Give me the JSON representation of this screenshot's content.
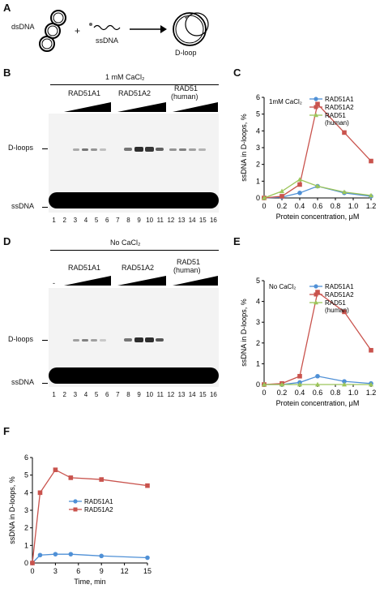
{
  "panelA": {
    "letter": "A",
    "dsdna_label": "dsDNA",
    "plus": "+",
    "ssdna_label": "ssDNA",
    "product_label": "D-loop"
  },
  "panelB": {
    "letter": "B",
    "condition": "1 mM CaCl₂",
    "minus": "-",
    "groups": [
      "RAD51A1",
      "RAD51A2",
      "RAD51"
    ],
    "human_note": "(human)",
    "dloops_label": "D-loops",
    "ssdna_label": "ssDNA",
    "lanes": [
      "1",
      "2",
      "3",
      "4",
      "5",
      "6",
      "7",
      "8",
      "9",
      "10",
      "11",
      "12",
      "13",
      "14",
      "15",
      "16"
    ]
  },
  "panelD": {
    "letter": "D",
    "condition": "No CaCl₂",
    "minus": "-",
    "groups": [
      "RAD51A1",
      "RAD51A2",
      "RAD51"
    ],
    "human_note": "(human)",
    "dloops_label": "D-loops",
    "ssdna_label": "ssDNA",
    "lanes": [
      "1",
      "2",
      "3",
      "4",
      "5",
      "6",
      "7",
      "8",
      "9",
      "10",
      "11",
      "12",
      "13",
      "14",
      "15",
      "16"
    ]
  },
  "colors": {
    "rad51a1": "#4f90d6",
    "rad51a2": "#c9534d",
    "rad51_human": "#9cc55a"
  },
  "chart_data": [
    {
      "panel": "C",
      "type": "line",
      "inset": "1mM CaCl₂",
      "xlabel": "Protein concentration, μM",
      "ylabel": "ssDNA in D-loops, %",
      "xlim": [
        0,
        1.2
      ],
      "ylim": [
        0,
        6
      ],
      "xticks": [
        "0",
        "0.2",
        "0.4",
        "0.6",
        "0.8",
        "1.0",
        "1.2"
      ],
      "yticks": [
        "0",
        "1",
        "2",
        "3",
        "4",
        "5",
        "6"
      ],
      "legend": [
        "RAD51A1",
        "RAD51A2",
        "RAD51 (human)"
      ],
      "series": [
        {
          "name": "RAD51A1",
          "x": [
            0,
            0.2,
            0.4,
            0.6,
            0.9,
            1.2
          ],
          "y": [
            0,
            0.05,
            0.3,
            0.7,
            0.3,
            0.1
          ]
        },
        {
          "name": "RAD51A2",
          "x": [
            0,
            0.2,
            0.4,
            0.6,
            0.9,
            1.2
          ],
          "y": [
            0,
            0.1,
            0.8,
            5.6,
            3.9,
            2.2
          ]
        },
        {
          "name": "RAD51 (human)",
          "x": [
            0,
            0.2,
            0.4,
            0.6,
            0.9,
            1.2
          ],
          "y": [
            0,
            0.4,
            1.1,
            0.7,
            0.35,
            0.15
          ]
        }
      ]
    },
    {
      "panel": "E",
      "type": "line",
      "inset": "No CaCl₂",
      "xlabel": "Protein concentration, μM",
      "ylabel": "ssDNA in D-loops, %",
      "xlim": [
        0,
        1.2
      ],
      "ylim": [
        0,
        5
      ],
      "xticks": [
        "0",
        "0.2",
        "0.4",
        "0.6",
        "0.8",
        "1.0",
        "1.2"
      ],
      "yticks": [
        "0",
        "1",
        "2",
        "3",
        "4",
        "5"
      ],
      "legend": [
        "RAD51A1",
        "RAD51A2",
        "RAD51 (human)"
      ],
      "series": [
        {
          "name": "RAD51A1",
          "x": [
            0,
            0.2,
            0.4,
            0.6,
            0.9,
            1.2
          ],
          "y": [
            0,
            0,
            0.1,
            0.4,
            0.15,
            0.05
          ]
        },
        {
          "name": "RAD51A2",
          "x": [
            0,
            0.2,
            0.4,
            0.6,
            0.9,
            1.2
          ],
          "y": [
            0,
            0.05,
            0.4,
            4.45,
            3.5,
            1.65
          ]
        },
        {
          "name": "RAD51 (human)",
          "x": [
            0,
            0.2,
            0.4,
            0.6,
            0.9,
            1.2
          ],
          "y": [
            0,
            0,
            0,
            0,
            0,
            0
          ]
        }
      ]
    },
    {
      "panel": "F",
      "type": "line",
      "xlabel": "Time, min",
      "ylabel": "ssDNA in D-loops, %",
      "xlim": [
        0,
        15
      ],
      "ylim": [
        0,
        6
      ],
      "xticks": [
        "0",
        "3",
        "6",
        "9",
        "12",
        "15"
      ],
      "yticks": [
        "0",
        "1",
        "2",
        "3",
        "4",
        "5",
        "6"
      ],
      "legend": [
        "RAD51A1",
        "RAD51A2"
      ],
      "series": [
        {
          "name": "RAD51A1",
          "x": [
            0,
            1,
            3,
            5,
            9,
            15
          ],
          "y": [
            0,
            0.45,
            0.5,
            0.5,
            0.4,
            0.3
          ]
        },
        {
          "name": "RAD51A2",
          "x": [
            0,
            1,
            3,
            5,
            9,
            15
          ],
          "y": [
            0,
            4.0,
            5.3,
            4.85,
            4.75,
            4.4
          ]
        }
      ]
    }
  ]
}
